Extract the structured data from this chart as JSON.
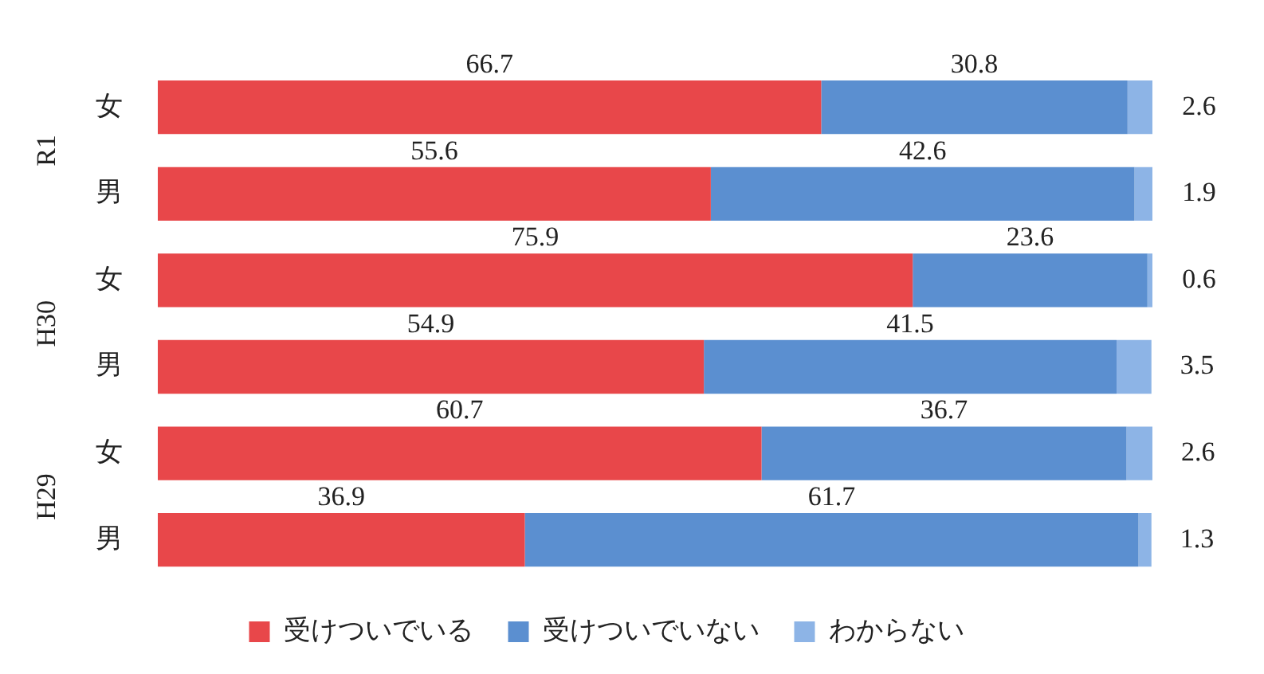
{
  "chart_data": {
    "type": "bar",
    "orientation": "horizontal",
    "stacked": true,
    "categories": [
      "女",
      "男",
      "女",
      "男",
      "女",
      "男"
    ],
    "series": [
      {
        "name": "受けついでいる",
        "color": "#e8474a",
        "values": [
          66.7,
          55.6,
          75.9,
          54.9,
          60.7,
          36.9
        ]
      },
      {
        "name": "受けついでいない",
        "color": "#5b8fd0",
        "values": [
          30.8,
          42.6,
          23.6,
          41.5,
          36.7,
          61.7
        ]
      },
      {
        "name": "わからない",
        "color": "#8db4e6",
        "values": [
          2.6,
          1.9,
          0.6,
          3.5,
          2.6,
          1.3
        ]
      }
    ],
    "annotations": [
      "R1",
      "H30",
      "H29"
    ],
    "xlim": [
      0,
      100
    ],
    "tick_labels": "y",
    "grid": false,
    "legend": "bottom",
    "data_labels": true
  }
}
